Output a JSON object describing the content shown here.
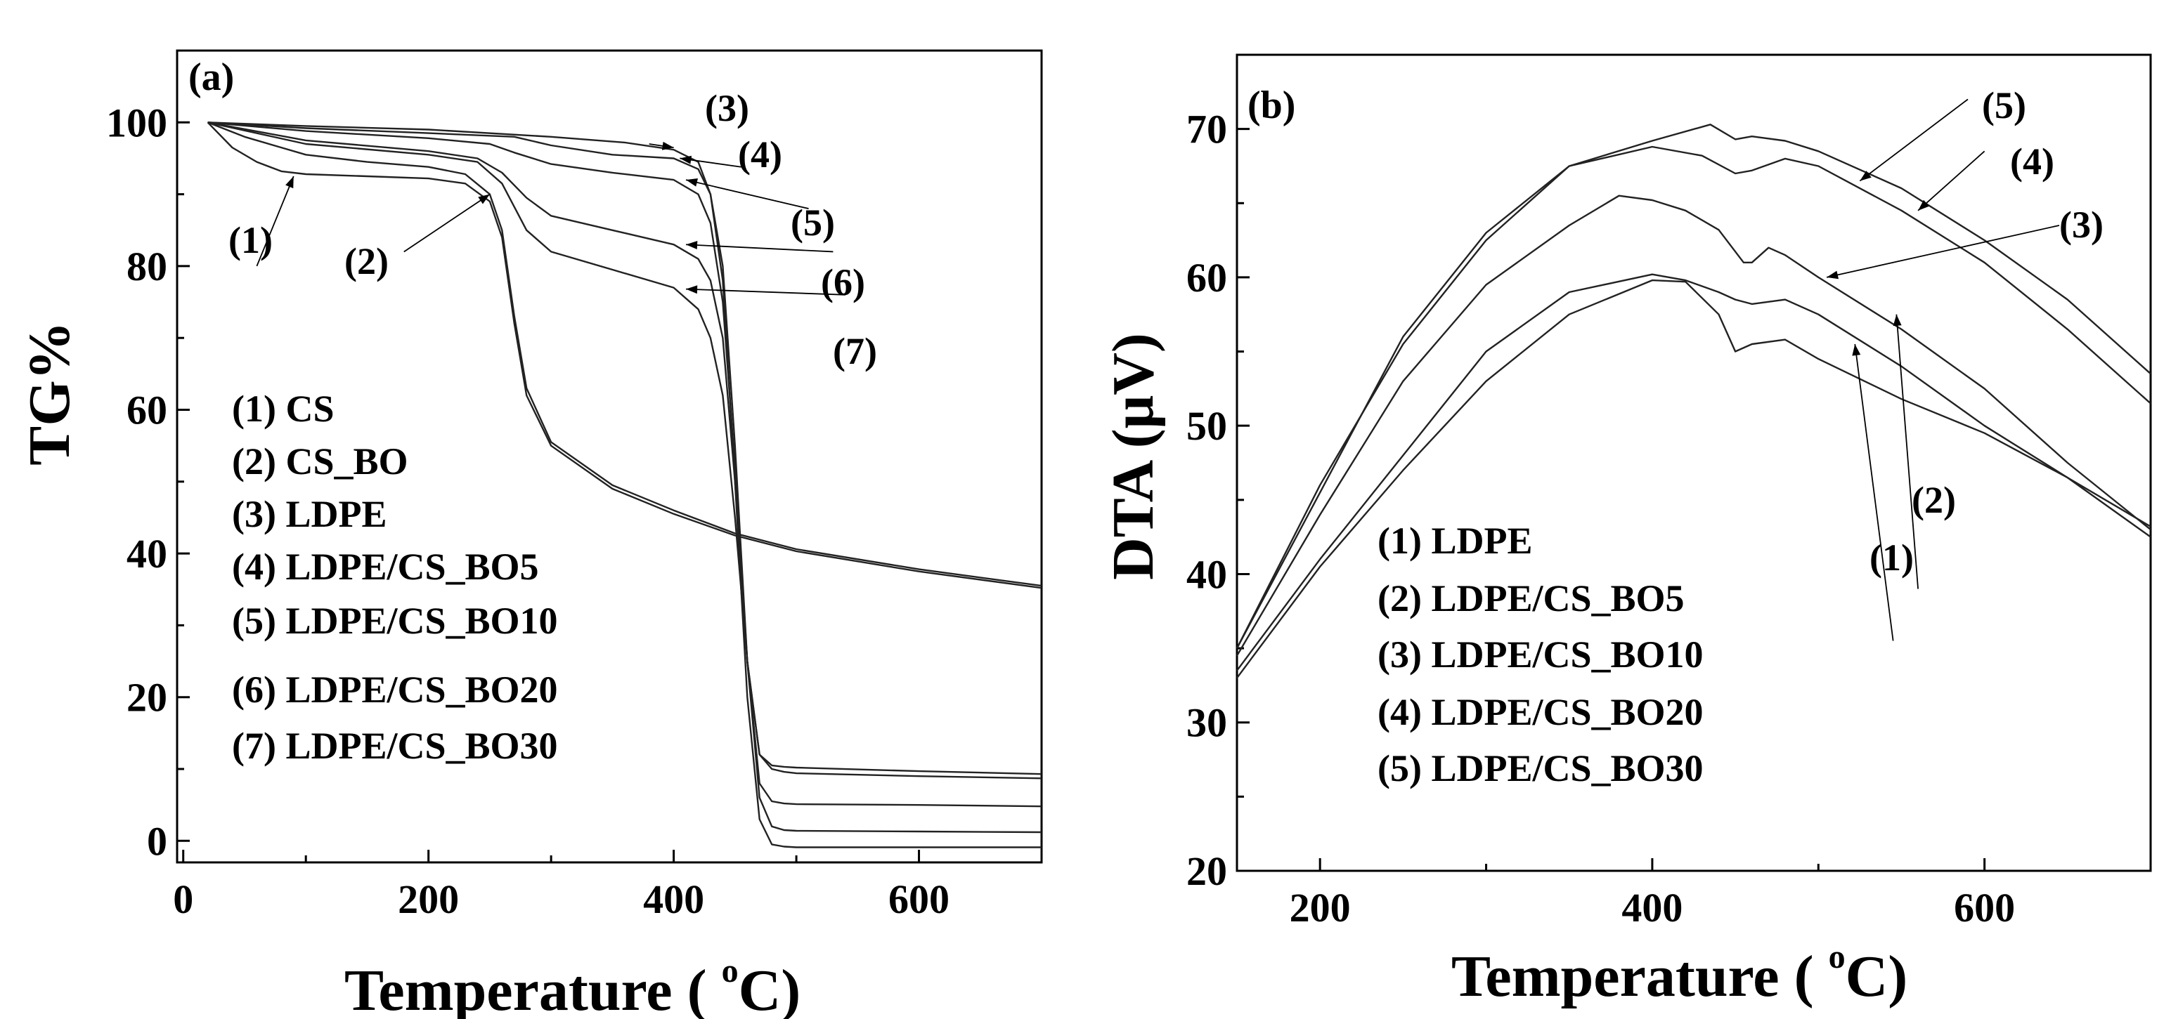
{
  "chart_data": [
    {
      "type": "line",
      "panel_label": "(a)",
      "xlabel": "Temperature ( °C)",
      "xlabel_main": "Temperature ( ",
      "xlabel_sup": "o",
      "xlabel_end": "C)",
      "ylabel": "TG%",
      "xlim": [
        -5,
        700
      ],
      "ylim": [
        -3,
        110
      ],
      "xticks": [
        0,
        200,
        400,
        600
      ],
      "yticks": [
        0,
        20,
        40,
        60,
        80,
        100
      ],
      "xtick_labels": [
        "0",
        "200",
        "400",
        "600"
      ],
      "ytick_labels": [
        "0",
        "20",
        "40",
        "60",
        "80",
        "100"
      ],
      "legend": [
        "(1) CS",
        "(2) CS_BO",
        "(3) LDPE",
        "(4) LDPE/CS_BO5",
        "(5) LDPE/CS_BO10",
        "(6) LDPE/CS_BO20",
        "(7) LDPE/CS_BO30"
      ],
      "series": [
        {
          "name": "(1) CS",
          "x": [
            20,
            40,
            60,
            80,
            100,
            150,
            200,
            230,
            250,
            260,
            270,
            280,
            300,
            350,
            400,
            450,
            500,
            600,
            700
          ],
          "y": [
            100,
            96.5,
            94.5,
            93.2,
            92.8,
            92.5,
            92.2,
            91.5,
            89,
            84,
            72,
            62,
            55,
            49,
            45.5,
            42.5,
            40.3,
            37.5,
            35.2
          ]
        },
        {
          "name": "(2) CS_BO",
          "x": [
            20,
            50,
            80,
            100,
            150,
            200,
            230,
            250,
            260,
            270,
            280,
            300,
            350,
            400,
            450,
            500,
            600,
            700
          ],
          "y": [
            100,
            98,
            96.5,
            95.5,
            94.5,
            93.8,
            92.8,
            90,
            85,
            73,
            63,
            55.5,
            49.5,
            46,
            42.8,
            40.6,
            37.8,
            35.5
          ]
        },
        {
          "name": "(3) LDPE",
          "x": [
            20,
            100,
            200,
            300,
            360,
            400,
            420,
            430,
            440,
            450,
            460,
            470,
            480,
            490,
            500,
            600,
            700
          ],
          "y": [
            100,
            99.5,
            99,
            98,
            97.2,
            96.2,
            94.5,
            90,
            78,
            50,
            20,
            3,
            -0.5,
            -0.8,
            -0.9,
            -0.9,
            -0.9
          ]
        },
        {
          "name": "(4) LDPE/CS_BO5",
          "x": [
            20,
            100,
            200,
            270,
            300,
            350,
            400,
            420,
            430,
            440,
            450,
            460,
            470,
            480,
            490,
            500,
            600,
            700
          ],
          "y": [
            100,
            99.2,
            98.5,
            98,
            96.8,
            95.5,
            95,
            93.5,
            90,
            80,
            55,
            25,
            6,
            2,
            1.5,
            1.4,
            1.3,
            1.2
          ]
        },
        {
          "name": "(5) LDPE/CS_BO10",
          "x": [
            20,
            100,
            200,
            250,
            270,
            300,
            350,
            400,
            420,
            430,
            440,
            450,
            460,
            470,
            480,
            490,
            500,
            600,
            700
          ],
          "y": [
            100,
            98.8,
            97.8,
            97,
            95.8,
            94.2,
            93,
            92,
            90,
            86,
            75,
            52,
            25,
            8,
            5.5,
            5.2,
            5.1,
            5,
            4.8
          ]
        },
        {
          "name": "(6) LDPE/CS_BO20",
          "x": [
            20,
            100,
            200,
            240,
            260,
            280,
            300,
            350,
            400,
            420,
            430,
            440,
            450,
            460,
            470,
            480,
            490,
            500,
            600,
            700
          ],
          "y": [
            100,
            97.5,
            96,
            95,
            93,
            89.5,
            87,
            85,
            83,
            81,
            78,
            70,
            50,
            25,
            12,
            10,
            9.6,
            9.4,
            9,
            8.7
          ]
        },
        {
          "name": "(7) LDPE/CS_BO30",
          "x": [
            20,
            100,
            200,
            240,
            260,
            280,
            300,
            350,
            400,
            420,
            430,
            440,
            450,
            460,
            470,
            480,
            490,
            500,
            600,
            700
          ],
          "y": [
            100,
            97,
            95.5,
            94.5,
            91.5,
            85,
            82,
            79.5,
            77,
            74,
            70,
            62,
            45,
            25,
            12,
            10.5,
            10.3,
            10.2,
            9.7,
            9.3
          ]
        }
      ],
      "annotations": [
        "(1)",
        "(2)",
        "(3)",
        "(4)",
        "(5)",
        "(6)",
        "(7)"
      ]
    },
    {
      "type": "line",
      "panel_label": "(b)",
      "xlabel": "Temperature ( °C)",
      "xlabel_main": "Temperature ( ",
      "xlabel_sup": "o",
      "xlabel_end": "C)",
      "ylabel": "DTA (μV)",
      "xlim": [
        150,
        700
      ],
      "ylim": [
        20,
        75
      ],
      "xticks": [
        200,
        400,
        600
      ],
      "yticks": [
        20,
        30,
        40,
        50,
        60,
        70
      ],
      "xtick_labels": [
        "200",
        "400",
        "600"
      ],
      "ytick_labels": [
        "20",
        "30",
        "40",
        "50",
        "60",
        "70"
      ],
      "legend": [
        "(1) LDPE",
        "(2) LDPE/CS_BO5",
        "(3) LDPE/CS_BO10",
        "(4) LDPE/CS_BO20",
        "(5) LDPE/CS_BO30"
      ],
      "series": [
        {
          "name": "(1) LDPE",
          "x": [
            150,
            200,
            250,
            300,
            350,
            400,
            420,
            440,
            450,
            460,
            480,
            500,
            550,
            600,
            650,
            700
          ],
          "y": [
            33,
            40.5,
            47,
            53,
            57.5,
            59.8,
            59.7,
            57.5,
            55,
            55.5,
            55.8,
            54.5,
            51.8,
            49.5,
            46.5,
            42.5
          ]
        },
        {
          "name": "(2) LDPE/CS_BO5",
          "x": [
            150,
            200,
            250,
            300,
            350,
            400,
            420,
            440,
            450,
            460,
            480,
            500,
            550,
            600,
            650,
            700
          ],
          "y": [
            33.5,
            41,
            48,
            55,
            59,
            60.2,
            59.8,
            59,
            58.5,
            58.2,
            58.5,
            57.5,
            54,
            50,
            46.5,
            43.2
          ]
        },
        {
          "name": "(3) LDPE/CS_BO10",
          "x": [
            150,
            200,
            250,
            300,
            350,
            380,
            400,
            420,
            440,
            455,
            460,
            470,
            480,
            500,
            550,
            600,
            650,
            700
          ],
          "y": [
            34.5,
            44,
            53,
            59.5,
            63.5,
            65.5,
            65.2,
            64.5,
            63.2,
            61,
            61,
            62,
            61.5,
            60,
            56.5,
            52.5,
            47.5,
            43
          ]
        },
        {
          "name": "(4) LDPE/CS_BO20",
          "x": [
            150,
            200,
            250,
            300,
            350,
            400,
            430,
            450,
            460,
            480,
            500,
            550,
            600,
            650,
            700
          ],
          "y": [
            35,
            45.5,
            56,
            63,
            67.5,
            68.8,
            68.2,
            67,
            67.2,
            68,
            67.5,
            64.5,
            61,
            56.5,
            51.5
          ]
        },
        {
          "name": "(5) LDPE/CS_BO30",
          "x": [
            150,
            200,
            250,
            300,
            350,
            400,
            435,
            450,
            460,
            480,
            500,
            550,
            600,
            650,
            700
          ],
          "y": [
            35,
            46,
            55.5,
            62.5,
            67.5,
            69.2,
            70.3,
            69.3,
            69.5,
            69.2,
            68.5,
            66,
            62.5,
            58.5,
            53.5
          ]
        }
      ],
      "annotations": [
        "(1)",
        "(2)",
        "(3)",
        "(4)",
        "(5)"
      ]
    }
  ]
}
